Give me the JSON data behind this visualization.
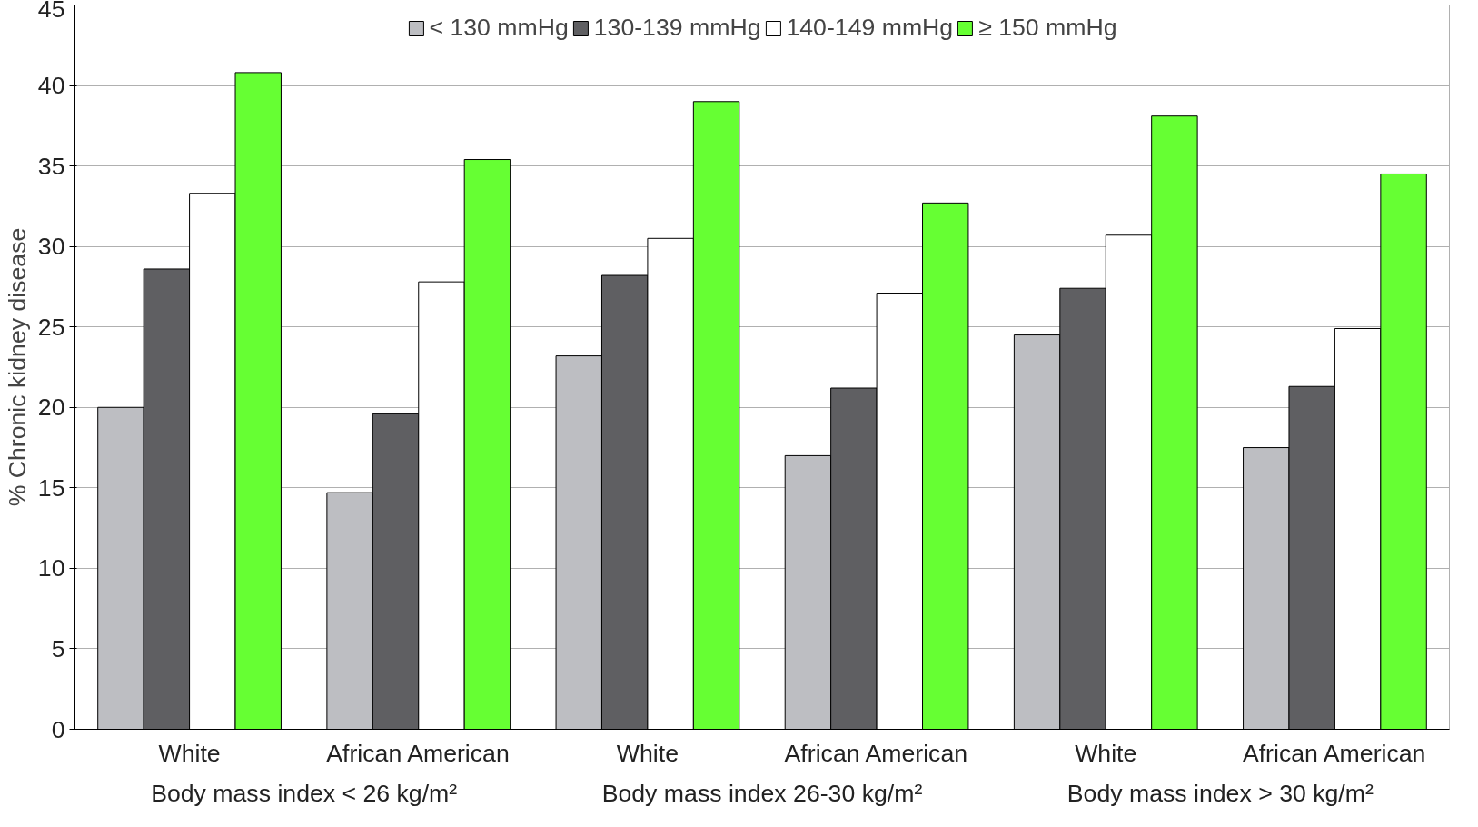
{
  "chart_data": {
    "type": "bar",
    "ylabel": "% Chronic kidney disease",
    "categories": [
      "White",
      "African American",
      "White",
      "African American",
      "White",
      "African American"
    ],
    "annotations": [
      "Body mass index < 26 kg/m²",
      "Body mass index 26-30 kg/m²",
      "Body mass index > 30 kg/m²"
    ],
    "series": [
      {
        "name": "< 130 mmHg",
        "color": "#bdbec2",
        "values": [
          20.0,
          14.7,
          23.2,
          17.0,
          24.5,
          17.5
        ]
      },
      {
        "name": "130-139 mmHg",
        "color": "#5f5f62",
        "values": [
          28.6,
          19.6,
          28.2,
          21.2,
          27.4,
          21.3
        ]
      },
      {
        "name": "140-149 mmHg",
        "color": "#ffffff",
        "values": [
          33.3,
          27.8,
          30.5,
          27.1,
          30.7,
          24.9
        ]
      },
      {
        "name": "≥ 150 mmHg",
        "color": "#66ff33",
        "values": [
          40.8,
          35.4,
          39.0,
          32.7,
          38.1,
          34.5
        ]
      }
    ],
    "ylim": [
      0,
      45
    ],
    "yticks": [
      0,
      5,
      10,
      15,
      20,
      25,
      30,
      35,
      40,
      45
    ],
    "grid": "y",
    "legend": "top"
  }
}
